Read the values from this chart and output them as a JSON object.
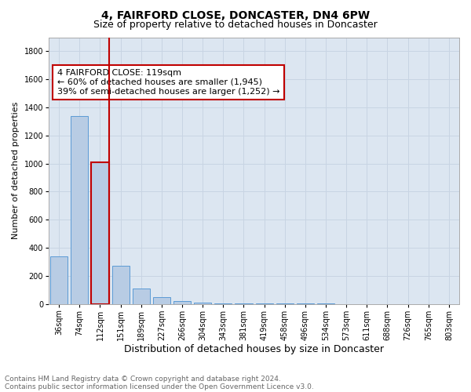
{
  "title": "4, FAIRFORD CLOSE, DONCASTER, DN4 6PW",
  "subtitle": "Size of property relative to detached houses in Doncaster",
  "xlabel": "Distribution of detached houses by size in Doncaster",
  "ylabel": "Number of detached properties",
  "footnote1": "Contains HM Land Registry data © Crown copyright and database right 2024.",
  "footnote2": "Contains public sector information licensed under the Open Government Licence v3.0.",
  "annotation_line1": "4 FAIRFORD CLOSE: 119sqm",
  "annotation_line2": "← 60% of detached houses are smaller (1,945)",
  "annotation_line3": "39% of semi-detached houses are larger (1,252) →",
  "bar_labels": [
    "36sqm",
    "74sqm",
    "112sqm",
    "151sqm",
    "189sqm",
    "227sqm",
    "266sqm",
    "304sqm",
    "343sqm",
    "381sqm",
    "419sqm",
    "458sqm",
    "496sqm",
    "534sqm",
    "573sqm",
    "611sqm",
    "688sqm",
    "726sqm",
    "765sqm",
    "803sqm"
  ],
  "bar_values": [
    340,
    1340,
    1010,
    270,
    110,
    50,
    20,
    8,
    4,
    3,
    2,
    1,
    1,
    1,
    0,
    0,
    0,
    0,
    0,
    0
  ],
  "bar_color": "#b8cce4",
  "bar_edge_color": "#5b9bd5",
  "highlight_bar_index": 2,
  "highlight_color": "#c00000",
  "highlight_bar_edge_color": "#c00000",
  "vline_bar_index": 2,
  "ylim": [
    0,
    1900
  ],
  "yticks": [
    0,
    200,
    400,
    600,
    800,
    1000,
    1200,
    1400,
    1600,
    1800
  ],
  "grid_color": "#c8d4e3",
  "plot_bg_color": "#dce6f1",
  "annotation_box_facecolor": "#ffffff",
  "annotation_box_edgecolor": "#c00000",
  "title_fontsize": 10,
  "subtitle_fontsize": 9,
  "xlabel_fontsize": 9,
  "ylabel_fontsize": 8,
  "tick_fontsize": 7,
  "annotation_fontsize": 8,
  "footnote_fontsize": 6.5
}
